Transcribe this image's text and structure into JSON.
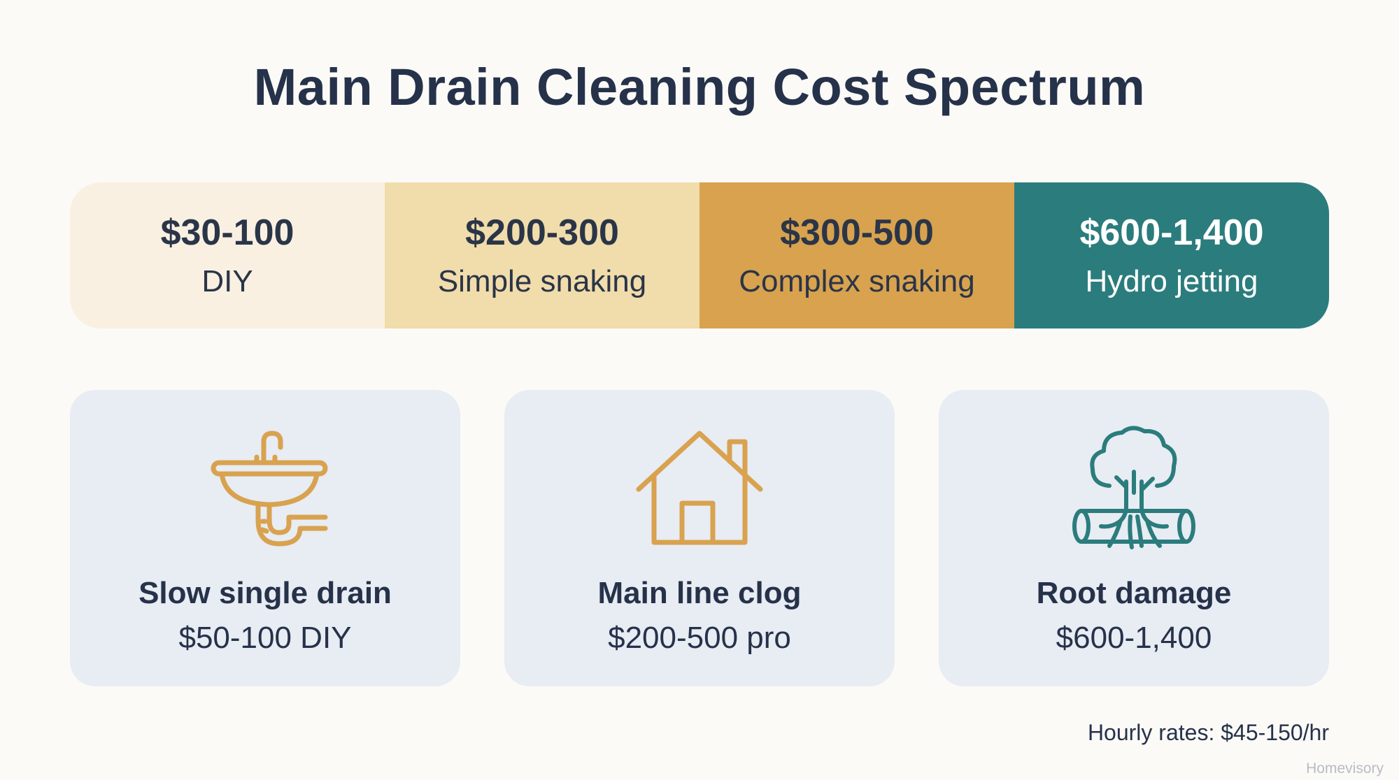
{
  "title": "Main Drain Cleaning Cost Spectrum",
  "spectrum": [
    {
      "price": "$30-100",
      "method": "DIY"
    },
    {
      "price": "$200-300",
      "method": "Simple snaking"
    },
    {
      "price": "$300-500",
      "method": "Complex snaking"
    },
    {
      "price": "$600-1,400",
      "method": "Hydro jetting"
    }
  ],
  "cards": [
    {
      "icon": "sink-icon",
      "title": "Slow single drain",
      "value": "$50-100 DIY"
    },
    {
      "icon": "house-icon",
      "title": "Main line clog",
      "value": "$200-500 pro"
    },
    {
      "icon": "tree-roots-icon",
      "title": "Root damage",
      "value": "$600-1,400"
    }
  ],
  "footnote": "Hourly rates: $45-150/hr",
  "brand": "Homevisory",
  "colors": {
    "segment_1": "#f9f0e2",
    "segment_2": "#f1dcab",
    "segment_3": "#d8a24f",
    "segment_4": "#2b7c7d",
    "card_background": "#e8ecf3",
    "icon_gold": "#d8a24f",
    "icon_teal": "#2b7c7d",
    "title_text": "#26324a"
  }
}
